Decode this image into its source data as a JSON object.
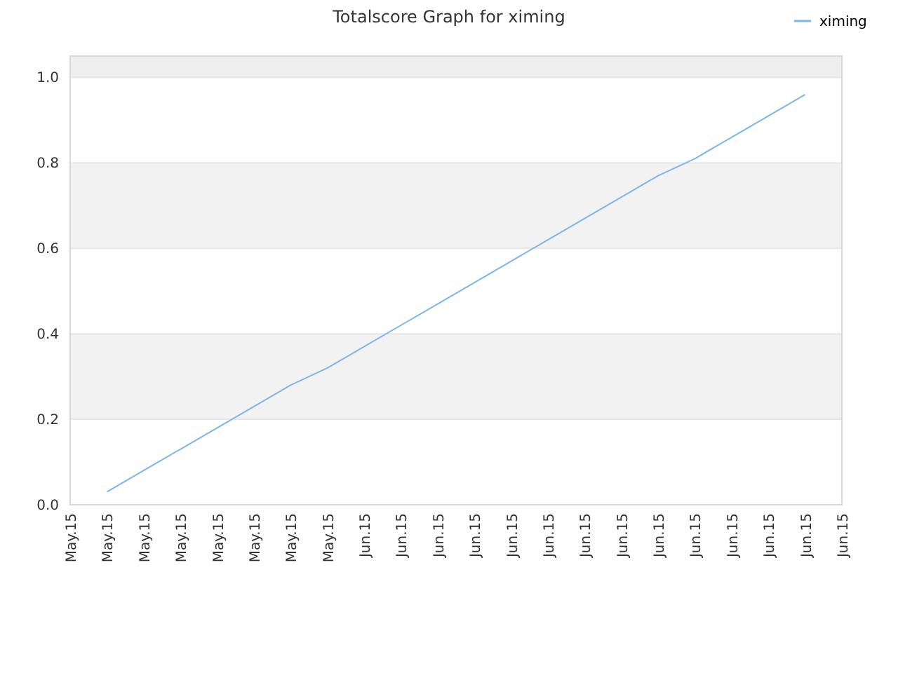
{
  "chart_data": {
    "type": "line",
    "title": "Totalscore Graph for ximing",
    "categories": [
      "May.15",
      "May.15",
      "May.15",
      "May.15",
      "May.15",
      "May.15",
      "May.15",
      "May.15",
      "Jun.15",
      "Jun.15",
      "Jun.15",
      "Jun.15",
      "Jun.15",
      "Jun.15",
      "Jun.15",
      "Jun.15",
      "Jun.15",
      "Jun.15",
      "Jun.15",
      "Jun.15",
      "Jun.15",
      "Jun.15"
    ],
    "series": [
      {
        "name": "ximing",
        "color": "#7cb5ec",
        "values": [
          null,
          0.03,
          0.08,
          0.13,
          0.18,
          0.23,
          0.28,
          0.32,
          0.37,
          0.42,
          0.47,
          0.52,
          0.57,
          0.62,
          0.67,
          0.72,
          0.77,
          0.81,
          0.86,
          0.91,
          0.96,
          null
        ]
      }
    ],
    "ylim": [
      0,
      1.05
    ],
    "yticks": [
      {
        "value": 0,
        "label": "0.0"
      },
      {
        "value": 0.2,
        "label": "0.2"
      },
      {
        "value": 0.4,
        "label": "0.4"
      },
      {
        "value": 0.6,
        "label": "0.6"
      },
      {
        "value": 0.8,
        "label": "0.8"
      },
      {
        "value": 1,
        "label": "1.0"
      }
    ],
    "bands": [
      {
        "axis": "y",
        "from": 0.2,
        "to": 0.4,
        "color": "#f2f2f2"
      },
      {
        "axis": "y",
        "from": 0.6,
        "to": 0.8,
        "color": "#f2f2f2"
      },
      {
        "axis": "y",
        "from": 1.0,
        "to": 1.05,
        "color": "#eeeeee"
      }
    ],
    "grid": "y",
    "legend": "top right",
    "marker": "none",
    "line_style": "solid"
  }
}
